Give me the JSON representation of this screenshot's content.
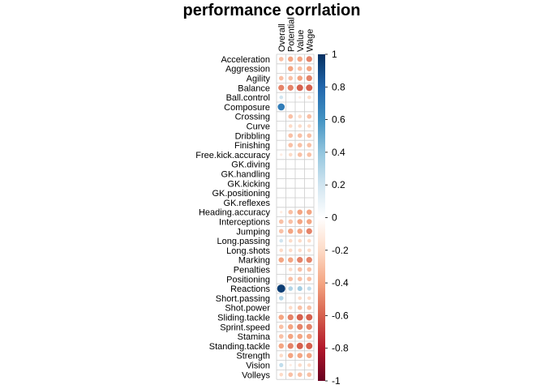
{
  "chart_data": {
    "type": "heatmap",
    "title": "performance corrlation",
    "columns": [
      "Overall",
      "Potential",
      "Value",
      "Wage"
    ],
    "rows": [
      "Acceleration",
      "Aggression",
      "Agility",
      "Balance",
      "Ball.control",
      "Composure",
      "Crossing",
      "Curve",
      "Dribbling",
      "Finishing",
      "Free.kick.accuracy",
      "GK.diving",
      "GK.handling",
      "GK.kicking",
      "GK.positioning",
      "GK.reflexes",
      "Heading.accuracy",
      "Interceptions",
      "Jumping",
      "Long.passing",
      "Long.shots",
      "Marking",
      "Penalties",
      "Positioning",
      "Reactions",
      "Short.passing",
      "Shot.power",
      "Sliding.tackle",
      "Sprint.speed",
      "Stamina",
      "Standing.tackle",
      "Strength",
      "Vision",
      "Volleys"
    ],
    "values": [
      [
        -0.3,
        -0.4,
        -0.4,
        -0.5
      ],
      [
        null,
        -0.4,
        -0.3,
        -0.4
      ],
      [
        -0.3,
        -0.3,
        -0.4,
        -0.5
      ],
      [
        -0.5,
        -0.5,
        -0.6,
        -0.6
      ],
      [
        0.2,
        null,
        -0.1,
        -0.2
      ],
      [
        0.7,
        null,
        null,
        null
      ],
      [
        null,
        -0.3,
        -0.2,
        -0.3
      ],
      [
        null,
        -0.2,
        -0.2,
        -0.2
      ],
      [
        null,
        -0.3,
        -0.3,
        -0.3
      ],
      [
        null,
        -0.3,
        -0.3,
        -0.3
      ],
      [
        -0.1,
        -0.2,
        -0.3,
        -0.3
      ],
      [
        0.0,
        0.0,
        0.0,
        0.0
      ],
      [
        0.0,
        0.0,
        0.0,
        0.0
      ],
      [
        0.0,
        0.0,
        0.0,
        0.0
      ],
      [
        0.0,
        0.0,
        0.0,
        0.0
      ],
      [
        0.0,
        0.0,
        0.0,
        0.0
      ],
      [
        -0.1,
        -0.3,
        -0.4,
        -0.4
      ],
      [
        -0.3,
        -0.3,
        -0.4,
        -0.4
      ],
      [
        -0.3,
        -0.4,
        -0.4,
        -0.5
      ],
      [
        0.2,
        -0.2,
        -0.2,
        -0.2
      ],
      [
        -0.2,
        -0.2,
        -0.2,
        -0.2
      ],
      [
        -0.4,
        -0.4,
        -0.5,
        -0.5
      ],
      [
        null,
        -0.2,
        -0.3,
        -0.3
      ],
      [
        null,
        -0.3,
        -0.3,
        -0.3
      ],
      [
        0.95,
        0.3,
        0.35,
        0.25
      ],
      [
        0.3,
        null,
        -0.2,
        -0.2
      ],
      [
        null,
        -0.2,
        -0.3,
        -0.3
      ],
      [
        -0.4,
        -0.5,
        -0.6,
        -0.6
      ],
      [
        -0.3,
        -0.4,
        -0.5,
        -0.5
      ],
      [
        -0.3,
        -0.4,
        -0.4,
        -0.4
      ],
      [
        -0.4,
        -0.5,
        -0.6,
        -0.6
      ],
      [
        -0.2,
        -0.4,
        -0.4,
        -0.4
      ],
      [
        0.25,
        -0.1,
        -0.2,
        -0.2
      ],
      [
        -0.2,
        -0.3,
        -0.3,
        -0.3
      ]
    ],
    "colorbar": {
      "range": [
        -1,
        1
      ],
      "ticks": [
        "1",
        "0.8",
        "0.6",
        "0.4",
        "0.2",
        "0",
        "-0.2",
        "-0.4",
        "-0.6",
        "-0.8",
        "-1"
      ],
      "colors": [
        "#67001F",
        "#B2182B",
        "#D6604D",
        "#F4A582",
        "#FDDBC7",
        "#FFFFFF",
        "#D1E5F0",
        "#92C5DE",
        "#4393C3",
        "#2166AC",
        "#053061"
      ]
    },
    "legend": "right",
    "grid": true
  }
}
